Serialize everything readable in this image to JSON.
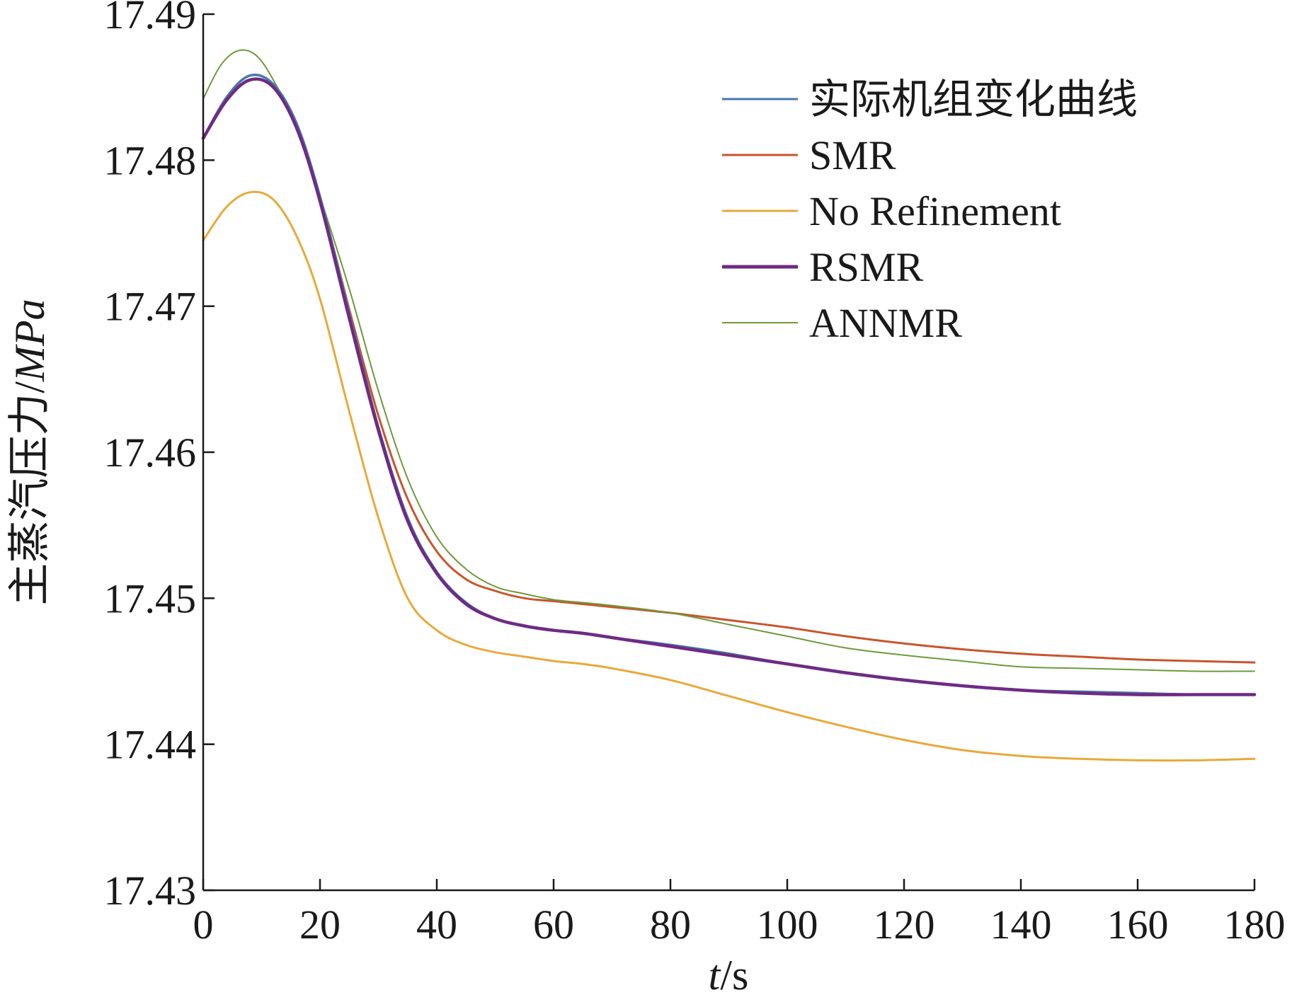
{
  "chart_data": {
    "type": "line",
    "title": "",
    "xlabel": {
      "italic": "t",
      "rest": "/s"
    },
    "ylabel": {
      "prefix": "主蒸汽压力/",
      "italic": "MPa"
    },
    "xlim": [
      0,
      180
    ],
    "ylim": [
      17.43,
      17.49
    ],
    "xticks": [
      "0",
      "20",
      "40",
      "60",
      "80",
      "100",
      "120",
      "140",
      "160",
      "180"
    ],
    "yticks": [
      "17.43",
      "17.44",
      "17.45",
      "17.46",
      "17.47",
      "17.48",
      "17.49"
    ],
    "grid": false,
    "legend_position": "top-right",
    "series": [
      {
        "name": "实际机组变化曲线",
        "color": "#4a76a8",
        "x": [
          0,
          4,
          8,
          12,
          16,
          20,
          25,
          30,
          35,
          40,
          45,
          50,
          55,
          60,
          65,
          70,
          80,
          90,
          100,
          110,
          120,
          130,
          140,
          150,
          160,
          170,
          180
        ],
        "y": [
          17.4815,
          17.4843,
          17.4858,
          17.4852,
          17.4825,
          17.4775,
          17.4695,
          17.4617,
          17.4555,
          17.4518,
          17.4497,
          17.4486,
          17.4481,
          17.4478,
          17.4476,
          17.4473,
          17.4468,
          17.4462,
          17.4455,
          17.4449,
          17.4444,
          17.444,
          17.4437,
          17.4436,
          17.4435,
          17.4434,
          17.4434
        ]
      },
      {
        "name": "SMR",
        "color": "#c8552c",
        "x": [
          0,
          4,
          8,
          12,
          16,
          20,
          25,
          30,
          35,
          40,
          45,
          50,
          55,
          60,
          65,
          70,
          80,
          90,
          100,
          110,
          120,
          130,
          140,
          150,
          160,
          170,
          180
        ],
        "y": [
          17.4815,
          17.4842,
          17.4855,
          17.485,
          17.4825,
          17.4775,
          17.4698,
          17.4625,
          17.4568,
          17.4532,
          17.4513,
          17.4505,
          17.45,
          17.4498,
          17.4496,
          17.4494,
          17.449,
          17.4485,
          17.448,
          17.4474,
          17.4469,
          17.4465,
          17.4462,
          17.446,
          17.4458,
          17.4457,
          17.4456
        ]
      },
      {
        "name": "No Refinement",
        "color": "#e8a93a",
        "x": [
          0,
          4,
          8,
          12,
          16,
          20,
          25,
          30,
          35,
          40,
          45,
          50,
          55,
          60,
          65,
          70,
          80,
          90,
          100,
          110,
          120,
          130,
          140,
          150,
          160,
          170,
          180
        ],
        "y": [
          17.4745,
          17.4768,
          17.4778,
          17.4773,
          17.4748,
          17.4705,
          17.4628,
          17.4555,
          17.45,
          17.4478,
          17.4468,
          17.4463,
          17.446,
          17.4457,
          17.4455,
          17.4452,
          17.4444,
          17.4433,
          17.4422,
          17.4412,
          17.4403,
          17.4396,
          17.4392,
          17.439,
          17.4389,
          17.4389,
          17.439
        ]
      },
      {
        "name": "RSMR",
        "color": "#6e2b84",
        "x": [
          0,
          4,
          8,
          12,
          16,
          20,
          25,
          30,
          35,
          40,
          45,
          50,
          55,
          60,
          65,
          70,
          80,
          90,
          100,
          110,
          120,
          130,
          140,
          150,
          160,
          170,
          180
        ],
        "y": [
          17.4815,
          17.4841,
          17.4855,
          17.485,
          17.4822,
          17.4772,
          17.4692,
          17.4615,
          17.4553,
          17.4517,
          17.4496,
          17.4486,
          17.4481,
          17.4478,
          17.4476,
          17.4473,
          17.4467,
          17.4461,
          17.4455,
          17.4449,
          17.4444,
          17.444,
          17.4437,
          17.4435,
          17.4434,
          17.4434,
          17.4434
        ]
      },
      {
        "name": "ANNMR",
        "color": "#6d9a3c",
        "x": [
          0,
          3,
          6,
          9,
          12,
          16,
          20,
          25,
          30,
          35,
          40,
          45,
          50,
          55,
          60,
          65,
          70,
          80,
          90,
          100,
          110,
          120,
          130,
          140,
          150,
          160,
          170,
          180
        ],
        "y": [
          17.4842,
          17.4865,
          17.4875,
          17.4872,
          17.4855,
          17.4822,
          17.4775,
          17.4712,
          17.4642,
          17.4582,
          17.4542,
          17.452,
          17.4508,
          17.4503,
          17.4499,
          17.4497,
          17.4495,
          17.449,
          17.4482,
          17.4474,
          17.4466,
          17.4461,
          17.4457,
          17.4453,
          17.4452,
          17.4451,
          17.445,
          17.445
        ]
      }
    ]
  }
}
